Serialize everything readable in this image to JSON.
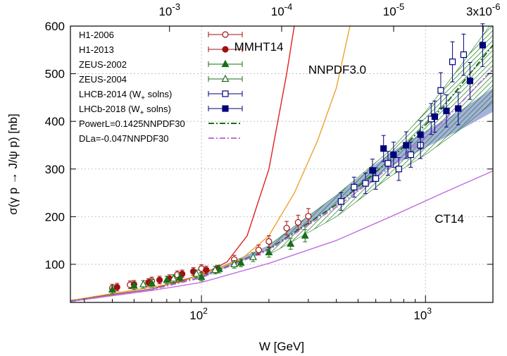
{
  "chart_data": {
    "type": "scatter",
    "xlabel": "W [GeV]",
    "ylabel": "σ(γ p → J/ψ p) [nb]",
    "x_scale": "log",
    "xlim": [
      26,
      2000
    ],
    "ylim": [
      20,
      600
    ],
    "x_ticks": [
      {
        "value": 100,
        "label": "10",
        "sup": "2"
      },
      {
        "value": 1000,
        "label": "10",
        "sup": "3"
      }
    ],
    "y_ticks": [
      100,
      200,
      300,
      400,
      500,
      600
    ],
    "top_axis_ticks": [
      {
        "w": 72,
        "label": "10",
        "sup": "-3"
      },
      {
        "w": 228,
        "label": "10",
        "sup": "-4"
      },
      {
        "w": 721,
        "label": "10",
        "sup": "-5"
      },
      {
        "w": 1810,
        "label": "3x10",
        "sup": "-6"
      }
    ],
    "grid": true,
    "legend_position": "top-left",
    "series": [
      {
        "name": "H1-2006",
        "marker": "open-circle",
        "color": "#a01010",
        "points": [
          [
            40,
            50
          ],
          [
            48,
            57
          ],
          [
            60,
            65
          ],
          [
            78,
            78
          ],
          [
            100,
            91
          ],
          [
            140,
            110
          ],
          [
            180,
            130
          ],
          [
            200,
            148
          ],
          [
            240,
            176
          ],
          [
            270,
            188
          ],
          [
            300,
            201
          ]
        ]
      },
      {
        "name": "H1-2013",
        "marker": "filled-circle",
        "color": "#a01010",
        "points": [
          [
            42,
            52
          ],
          [
            50,
            58
          ],
          [
            58,
            62
          ],
          [
            65,
            67
          ],
          [
            72,
            70
          ],
          [
            82,
            80
          ],
          [
            92,
            85
          ],
          [
            105,
            88
          ],
          [
            118,
            90
          ]
        ]
      },
      {
        "name": "ZEUS-2002",
        "marker": "filled-triangle",
        "color": "#1a6e1a",
        "points": [
          [
            40,
            47
          ],
          [
            50,
            55
          ],
          [
            60,
            60
          ],
          [
            70,
            67
          ],
          [
            80,
            72
          ],
          [
            100,
            73
          ],
          [
            120,
            90
          ],
          [
            150,
            103
          ],
          [
            200,
            125
          ],
          [
            250,
            143
          ],
          [
            290,
            160
          ]
        ]
      },
      {
        "name": "ZEUS-2004",
        "marker": "open-triangle",
        "color": "#1a6e1a",
        "points": [
          [
            55,
            58
          ],
          [
            75,
            70
          ],
          [
            95,
            80
          ],
          [
            115,
            88
          ],
          [
            140,
            100
          ],
          [
            170,
            115
          ]
        ]
      },
      {
        "name": "LHCB-2014 (W+ solns)",
        "marker": "open-square",
        "color": "#00007a",
        "points": [
          [
            420,
            232
          ],
          [
            480,
            262
          ],
          [
            540,
            270
          ],
          [
            600,
            280
          ],
          [
            680,
            312
          ],
          [
            760,
            300
          ],
          [
            860,
            330
          ],
          [
            950,
            350
          ],
          [
            1060,
            405
          ],
          [
            1170,
            465
          ],
          [
            1320,
            525
          ],
          [
            1480,
            540
          ]
        ]
      },
      {
        "name": "LHCb-2018 (W+ solns)",
        "marker": "filled-square",
        "color": "#00007a",
        "points": [
          [
            580,
            297
          ],
          [
            650,
            343
          ],
          [
            720,
            330
          ],
          [
            820,
            350
          ],
          [
            950,
            372
          ],
          [
            1100,
            410
          ],
          [
            1240,
            422
          ],
          [
            1400,
            427
          ],
          [
            1580,
            485
          ],
          [
            1800,
            560
          ]
        ]
      }
    ],
    "curves": [
      {
        "name": "MMHT14",
        "color": "#e02020",
        "points": [
          [
            26,
            24
          ],
          [
            60,
            48
          ],
          [
            100,
            78
          ],
          [
            130,
            105
          ],
          [
            160,
            160
          ],
          [
            200,
            300
          ],
          [
            240,
            500
          ],
          [
            270,
            650
          ]
        ]
      },
      {
        "name": "NNPDF3.0",
        "color": "#f0a030",
        "points": [
          [
            26,
            24
          ],
          [
            80,
            62
          ],
          [
            150,
            110
          ],
          [
            200,
            160
          ],
          [
            260,
            250
          ],
          [
            330,
            360
          ],
          [
            400,
            470
          ],
          [
            460,
            600
          ]
        ]
      },
      {
        "name": "CT14",
        "color": "#c06ee0",
        "points": [
          [
            26,
            22
          ],
          [
            60,
            45
          ],
          [
            100,
            62
          ],
          [
            200,
            102
          ],
          [
            400,
            150
          ],
          [
            700,
            200
          ],
          [
            1200,
            250
          ],
          [
            2000,
            296
          ]
        ]
      },
      {
        "name": "PowerL=0.1425NNPDF30",
        "color": "#1a6e1a",
        "dash": "dashdot",
        "points": [
          [
            26,
            23
          ],
          [
            60,
            48
          ],
          [
            100,
            73
          ],
          [
            200,
            132
          ],
          [
            400,
            225
          ],
          [
            700,
            320
          ],
          [
            1200,
            430
          ],
          [
            2000,
            560
          ]
        ]
      },
      {
        "name": "DLa=-0.047NNPDF30",
        "color": "#c06ee0",
        "dash": "dashdot",
        "points": [
          [
            26,
            22
          ],
          [
            60,
            47
          ],
          [
            100,
            72
          ],
          [
            200,
            130
          ],
          [
            400,
            220
          ],
          [
            700,
            305
          ],
          [
            1200,
            400
          ],
          [
            2000,
            510
          ]
        ]
      }
    ],
    "bands": [
      {
        "name": "blue-band",
        "color": "#8090d0",
        "upper": [
          [
            100,
            78
          ],
          [
            200,
            140
          ],
          [
            400,
            245
          ],
          [
            700,
            335
          ],
          [
            1000,
            380
          ],
          [
            1400,
            420
          ],
          [
            2000,
            470
          ]
        ],
        "lower": [
          [
            100,
            72
          ],
          [
            200,
            130
          ],
          [
            400,
            225
          ],
          [
            700,
            305
          ],
          [
            1000,
            345
          ],
          [
            1400,
            380
          ],
          [
            2000,
            420
          ]
        ]
      },
      {
        "name": "green-hatched-band",
        "color": "#1a7a1a",
        "upper": [
          [
            200,
            140
          ],
          [
            400,
            245
          ],
          [
            700,
            340
          ],
          [
            1000,
            420
          ],
          [
            1400,
            510
          ],
          [
            2000,
            610
          ]
        ],
        "lower": [
          [
            200,
            120
          ],
          [
            400,
            200
          ],
          [
            700,
            285
          ],
          [
            1000,
            330
          ],
          [
            1400,
            380
          ],
          [
            2000,
            440
          ]
        ]
      }
    ],
    "curve_labels": [
      {
        "text": "MMHT14",
        "w": 140,
        "y": 548
      },
      {
        "text": "NNPDF3.0",
        "w": 300,
        "y": 500
      },
      {
        "text": "CT14",
        "w": 1100,
        "y": 187
      }
    ]
  }
}
